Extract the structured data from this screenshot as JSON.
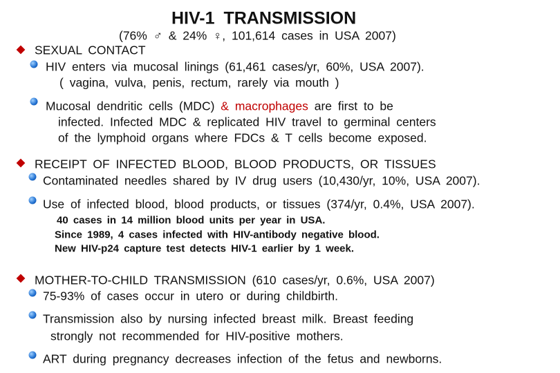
{
  "title": "HIV-1 TRANSMISSION",
  "subtitle": "(76% ♂ & 24% ♀, 101,614 cases in USA 2007)",
  "sections": [
    {
      "heading": "SEXUAL CONTACT",
      "items": [
        {
          "lines": [
            "HIV enters via mucosal linings (61,461 cases/yr, 60%, USA 2007).",
            "( vagina, vulva, penis, rectum, rarely via mouth )"
          ]
        },
        {
          "lead": "Mucosal dendritic cells (MDC)",
          "highlight": "& macrophages",
          "tail": "are first to be",
          "lines": [
            "infected. Infected MDC & replicated HIV travel to germinal centers",
            "of the lymphoid organs where FDCs & T cells become exposed."
          ]
        }
      ]
    },
    {
      "heading": "RECEIPT OF INFECTED BLOOD, BLOOD PRODUCTS, OR TISSUES",
      "items": [
        {
          "lines": [
            "Contaminated needles shared by IV drug users (10,430/yr, 10%, USA 2007)."
          ]
        },
        {
          "lines": [
            "Use of infected blood, blood products, or tissues (374/yr, 0.4%, USA 2007)."
          ],
          "notes": [
            "40 cases in 14 million blood units per year in USA.",
            "Since 1989, 4 cases infected with HIV-antibody negative blood.",
            "New HIV-p24 capture test detects HIV-1 earlier by 1 week."
          ]
        }
      ]
    },
    {
      "heading": "MOTHER-TO-CHILD TRANSMISSION (610 cases/yr, 0.6%, USA 2007)",
      "items": [
        {
          "lines": [
            "75-93% of cases occur in utero or during childbirth."
          ]
        },
        {
          "lines": [
            "Transmission also by nursing infected breast milk. Breast feeding",
            "strongly not recommended for HIV-positive mothers."
          ]
        },
        {
          "lines": [
            "ART during pregnancy decreases infection of the fetus and newborns."
          ]
        }
      ]
    }
  ]
}
